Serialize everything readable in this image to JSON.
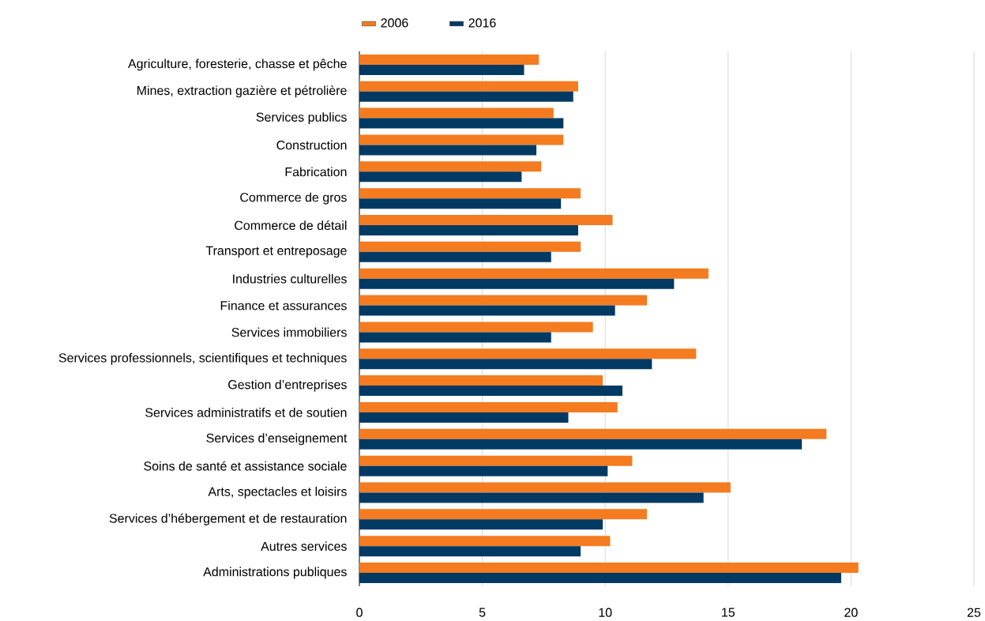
{
  "chart_data": {
    "type": "bar",
    "orientation": "horizontal",
    "categories": [
      "Agriculture, foresterie, chasse et pêche",
      "Mines, extraction gazière et pétrolière",
      "Services publics",
      "Construction",
      "Fabrication",
      "Commerce de gros",
      "Commerce de détail",
      "Transport et entreposage",
      "Industries culturelles",
      "Finance et assurances",
      "Services immobiliers",
      "Services professionnels, scientifiques et techniques",
      "Gestion d’entreprises",
      "Services administratifs et de soutien",
      "Services d’enseignement",
      "Soins de santé et assistance sociale",
      "Arts, spectacles et loisirs",
      "Services d’hébergement et de restauration",
      "Autres services",
      "Administrations publiques"
    ],
    "series": [
      {
        "name": "2006",
        "color": "#f47b20",
        "values": [
          7.3,
          8.9,
          7.9,
          8.3,
          7.4,
          9.0,
          10.3,
          9.0,
          14.2,
          11.7,
          9.5,
          13.7,
          9.9,
          10.5,
          19.0,
          11.1,
          15.1,
          11.7,
          10.2,
          20.3
        ]
      },
      {
        "name": "2016",
        "color": "#003a63",
        "values": [
          6.7,
          8.7,
          8.3,
          7.2,
          6.6,
          8.2,
          8.9,
          7.8,
          12.8,
          10.4,
          7.8,
          11.9,
          10.7,
          8.5,
          18.0,
          10.1,
          14.0,
          9.9,
          9.0,
          19.6
        ]
      }
    ],
    "xlim": [
      0,
      25
    ],
    "xticks": [
      0,
      5,
      10,
      15,
      20,
      25
    ],
    "grid": "x",
    "legend": "top"
  }
}
